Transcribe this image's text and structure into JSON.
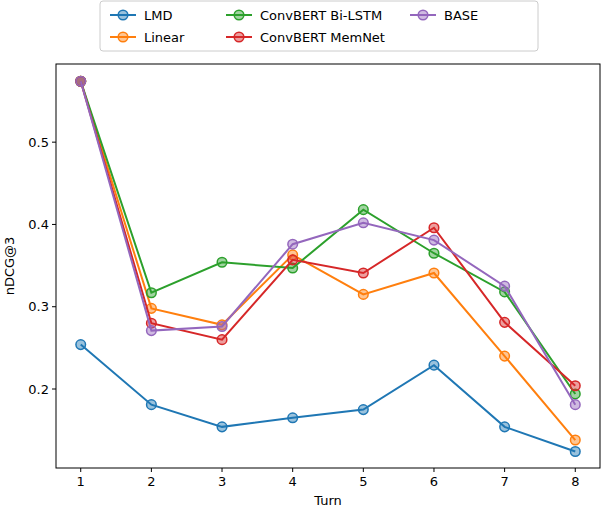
{
  "chart_data": {
    "type": "line",
    "x_label": "Turn",
    "y_label": "nDCG@3",
    "x": [
      1,
      2,
      3,
      4,
      5,
      6,
      7,
      8
    ],
    "xlim": [
      0.65,
      8.35
    ],
    "xticks": [
      1,
      2,
      3,
      4,
      5,
      6,
      7,
      8
    ],
    "ylim": [
      0.104,
      0.595
    ],
    "yticks": [
      0.2,
      0.3,
      0.4,
      0.5
    ],
    "grid": false,
    "legend": "top",
    "marker": "circle",
    "series": [
      {
        "name": "LMD",
        "color": "#1f77b4",
        "values": [
          0.254,
          0.181,
          0.154,
          0.165,
          0.175,
          0.229,
          0.154,
          0.124
        ]
      },
      {
        "name": "Linear",
        "color": "#ff7f0e",
        "values": [
          0.574,
          0.298,
          0.278,
          0.363,
          0.315,
          0.341,
          0.24,
          0.138
        ]
      },
      {
        "name": "ConvBERT Bi-LSTM",
        "color": "#2ca02c",
        "values": [
          0.574,
          0.317,
          0.354,
          0.347,
          0.418,
          0.365,
          0.318,
          0.194
        ]
      },
      {
        "name": "ConvBERT MemNet",
        "color": "#d62728",
        "values": [
          0.574,
          0.28,
          0.26,
          0.357,
          0.341,
          0.396,
          0.281,
          0.204
        ]
      },
      {
        "name": "BASE",
        "color": "#9467bd",
        "values": [
          0.574,
          0.271,
          0.276,
          0.376,
          0.402,
          0.381,
          0.325,
          0.181
        ]
      }
    ]
  }
}
